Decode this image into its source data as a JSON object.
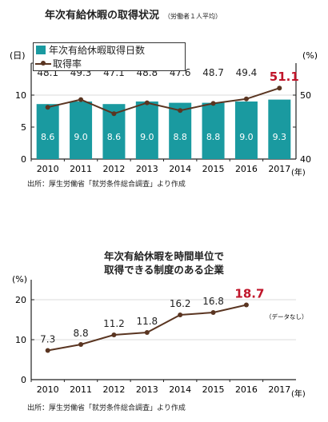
{
  "chart1": {
    "title": "年次有給休暇の取得状況",
    "title_note": "（労働者１人平均）",
    "left_unit": "(日)",
    "right_unit": "(%)",
    "x_suffix": "(年)",
    "source": "出所：厚生労働省「就労条件総合調査」より作成",
    "legend": {
      "bar": "年次有給休暇取得日数",
      "line": "取得率"
    },
    "left_ticks": [
      "0",
      "5",
      "10",
      "15"
    ],
    "right_ticks": [
      "40",
      "50"
    ],
    "colors": {
      "bar": "#1a9aa0",
      "line": "#5a3521",
      "highlight": "#c0152a"
    }
  },
  "chart2": {
    "title_line1": "年次有給休暇を時間単位で",
    "title_line2": "取得できる制度のある企業",
    "y_unit": "(%)",
    "x_suffix": "(年)",
    "no_data": "（データなし）",
    "source": "出所：厚生労働省「就労条件総合調査」より作成",
    "y_ticks": [
      "0",
      "10",
      "20"
    ],
    "colors": {
      "line": "#5a3521",
      "highlight": "#c0152a"
    }
  },
  "chart_data": [
    {
      "type": "bar",
      "title": "年次有給休暇の取得状況",
      "categories": [
        "2010",
        "2011",
        "2012",
        "2013",
        "2014",
        "2015",
        "2016",
        "2017"
      ],
      "series": [
        {
          "name": "年次有給休暇取得日数",
          "axis": "left",
          "values": [
            8.6,
            9.0,
            8.6,
            9.0,
            8.8,
            8.8,
            9.0,
            9.3
          ]
        },
        {
          "name": "取得率",
          "type": "line",
          "axis": "right",
          "values": [
            48.1,
            49.3,
            47.1,
            48.8,
            47.6,
            48.7,
            49.4,
            51.1
          ]
        }
      ],
      "ylim_left": [
        0,
        15
      ],
      "ylim_right": [
        40,
        55
      ],
      "ylabel": "(日)",
      "ylabel_right": "(%)",
      "legend": "top-left"
    },
    {
      "type": "line",
      "title": "年次有給休暇を時間単位で取得できる制度のある企業",
      "categories": [
        "2010",
        "2011",
        "2012",
        "2013",
        "2014",
        "2015",
        "2016",
        "2017"
      ],
      "series": [
        {
          "values": [
            7.3,
            8.8,
            11.2,
            11.8,
            16.2,
            16.8,
            18.7,
            null
          ]
        }
      ],
      "ylim": [
        0,
        25
      ],
      "ylabel": "(%)"
    }
  ]
}
